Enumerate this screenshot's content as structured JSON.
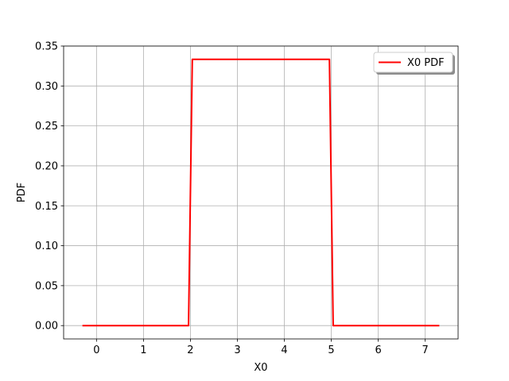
{
  "chart_data": {
    "type": "line",
    "title": "",
    "xlabel": "X0",
    "ylabel": "PDF",
    "xlim": [
      -0.7,
      7.7
    ],
    "ylim": [
      -0.0167,
      0.35
    ],
    "xticks": [
      0,
      1,
      2,
      3,
      4,
      5,
      6,
      7
    ],
    "yticks": [
      0.0,
      0.05,
      0.1,
      0.15,
      0.2,
      0.25,
      0.3,
      0.35
    ],
    "xtick_labels": [
      "0",
      "1",
      "2",
      "3",
      "4",
      "5",
      "6",
      "7"
    ],
    "ytick_labels": [
      "0.00",
      "0.05",
      "0.10",
      "0.15",
      "0.20",
      "0.25",
      "0.30",
      "0.35"
    ],
    "grid": true,
    "legend": "upper-right",
    "series": [
      {
        "name": "X0 PDF",
        "color": "#ff0000",
        "x": [
          -0.3,
          1.96,
          2.04,
          4.96,
          5.04,
          7.3
        ],
        "y": [
          0.0,
          0.0,
          0.3333,
          0.3333,
          0.0,
          0.0
        ]
      }
    ]
  }
}
